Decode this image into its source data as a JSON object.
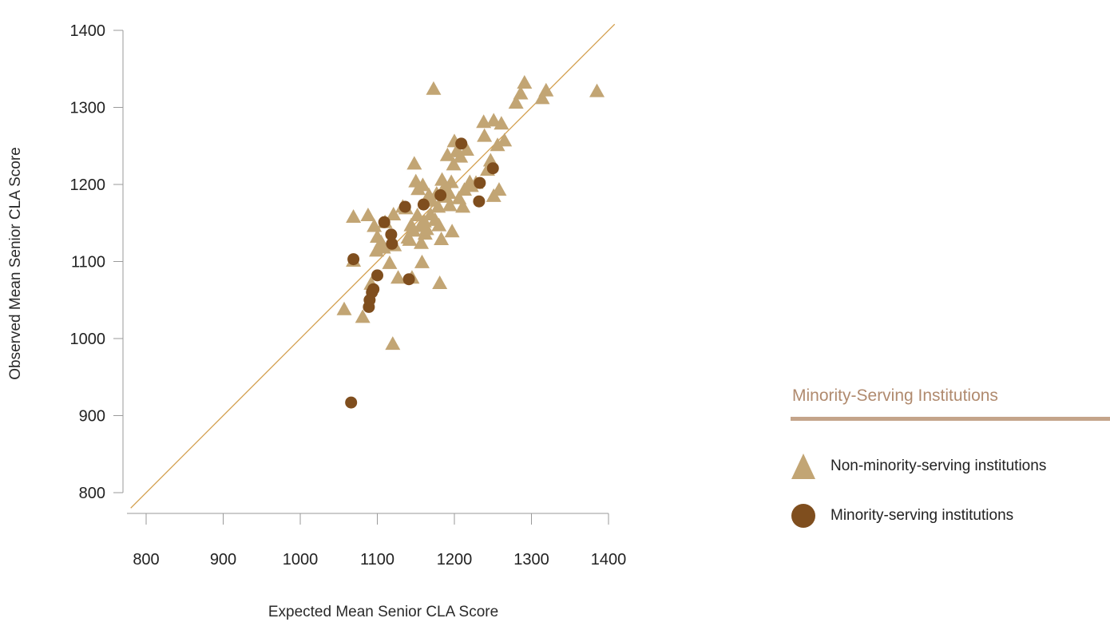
{
  "colors": {
    "triangle": "#c2a574",
    "circle": "#7f4e1e",
    "diagonal": "#d29d4b",
    "axis": "#9a9a9a",
    "legend_title": "#b08a6e",
    "legend_rule": "#c4a48a"
  },
  "legend": {
    "title": "Minority-Serving Institutions",
    "items": [
      {
        "label": "Non-minority-serving institutions",
        "marker": "triangle-icon"
      },
      {
        "label": "Minority-serving institutions",
        "marker": "circle-icon"
      }
    ]
  },
  "chart_data": {
    "type": "scatter",
    "title": "",
    "xlabel": "Expected Mean Senior CLA Score",
    "ylabel": "Observed Mean Senior CLA Score",
    "xlim": [
      780,
      1400
    ],
    "ylim": [
      780,
      1400
    ],
    "xticks": [
      800,
      900,
      1000,
      1100,
      1200,
      1300,
      1400
    ],
    "yticks": [
      800,
      900,
      1000,
      1100,
      1200,
      1300,
      1400
    ],
    "reference_line": "y = x",
    "legend_position": "right",
    "series": [
      {
        "name": "Non-minority-serving institutions",
        "marker": "triangle",
        "points": [
          [
            1057,
            1037
          ],
          [
            1069,
            1100
          ],
          [
            1069,
            1157
          ],
          [
            1081,
            1027
          ],
          [
            1088,
            1159
          ],
          [
            1092,
            1070
          ],
          [
            1096,
            1145
          ],
          [
            1099,
            1113
          ],
          [
            1100,
            1131
          ],
          [
            1105,
            1124
          ],
          [
            1108,
            1117
          ],
          [
            1110,
            1150
          ],
          [
            1116,
            1097
          ],
          [
            1120,
            992
          ],
          [
            1121,
            1160
          ],
          [
            1122,
            1120
          ],
          [
            1127,
            1078
          ],
          [
            1133,
            1170
          ],
          [
            1137,
            1168
          ],
          [
            1140,
            1130
          ],
          [
            1142,
            1127
          ],
          [
            1144,
            1146
          ],
          [
            1145,
            1078
          ],
          [
            1147,
            1139
          ],
          [
            1148,
            1226
          ],
          [
            1150,
            1203
          ],
          [
            1152,
            1159
          ],
          [
            1153,
            1193
          ],
          [
            1156,
            1145
          ],
          [
            1157,
            1123
          ],
          [
            1158,
            1098
          ],
          [
            1159,
            1198
          ],
          [
            1161,
            1151
          ],
          [
            1162,
            1135
          ],
          [
            1164,
            1141
          ],
          [
            1167,
            1185
          ],
          [
            1169,
            1160
          ],
          [
            1171,
            1178
          ],
          [
            1173,
            1323
          ],
          [
            1175,
            1153
          ],
          [
            1177,
            1187
          ],
          [
            1179,
            1170
          ],
          [
            1180,
            1146
          ],
          [
            1181,
            1071
          ],
          [
            1183,
            1128
          ],
          [
            1184,
            1205
          ],
          [
            1187,
            1195
          ],
          [
            1189,
            1183
          ],
          [
            1191,
            1237
          ],
          [
            1193,
            1188
          ],
          [
            1194,
            1172
          ],
          [
            1196,
            1202
          ],
          [
            1197,
            1138
          ],
          [
            1199,
            1225
          ],
          [
            1200,
            1255
          ],
          [
            1203,
            1242
          ],
          [
            1206,
            1181
          ],
          [
            1208,
            1235
          ],
          [
            1211,
            1170
          ],
          [
            1213,
            1192
          ],
          [
            1216,
            1244
          ],
          [
            1220,
            1202
          ],
          [
            1222,
            1197
          ],
          [
            1228,
            1201
          ],
          [
            1238,
            1280
          ],
          [
            1239,
            1262
          ],
          [
            1243,
            1218
          ],
          [
            1247,
            1230
          ],
          [
            1251,
            1282
          ],
          [
            1251,
            1184
          ],
          [
            1256,
            1250
          ],
          [
            1258,
            1192
          ],
          [
            1261,
            1278
          ],
          [
            1265,
            1256
          ],
          [
            1280,
            1305
          ],
          [
            1286,
            1317
          ],
          [
            1291,
            1331
          ],
          [
            1314,
            1311
          ],
          [
            1319,
            1321
          ],
          [
            1385,
            1320
          ]
        ]
      },
      {
        "name": "Minority-serving institutions",
        "marker": "circle",
        "points": [
          [
            1066,
            917
          ],
          [
            1069,
            1103
          ],
          [
            1089,
            1041
          ],
          [
            1090,
            1050
          ],
          [
            1093,
            1060
          ],
          [
            1095,
            1064
          ],
          [
            1100,
            1082
          ],
          [
            1109,
            1151
          ],
          [
            1118,
            1135
          ],
          [
            1119,
            1123
          ],
          [
            1136,
            1171
          ],
          [
            1141,
            1077
          ],
          [
            1160,
            1174
          ],
          [
            1182,
            1186
          ],
          [
            1209,
            1253
          ],
          [
            1232,
            1178
          ],
          [
            1233,
            1202
          ],
          [
            1250,
            1221
          ]
        ]
      }
    ]
  }
}
